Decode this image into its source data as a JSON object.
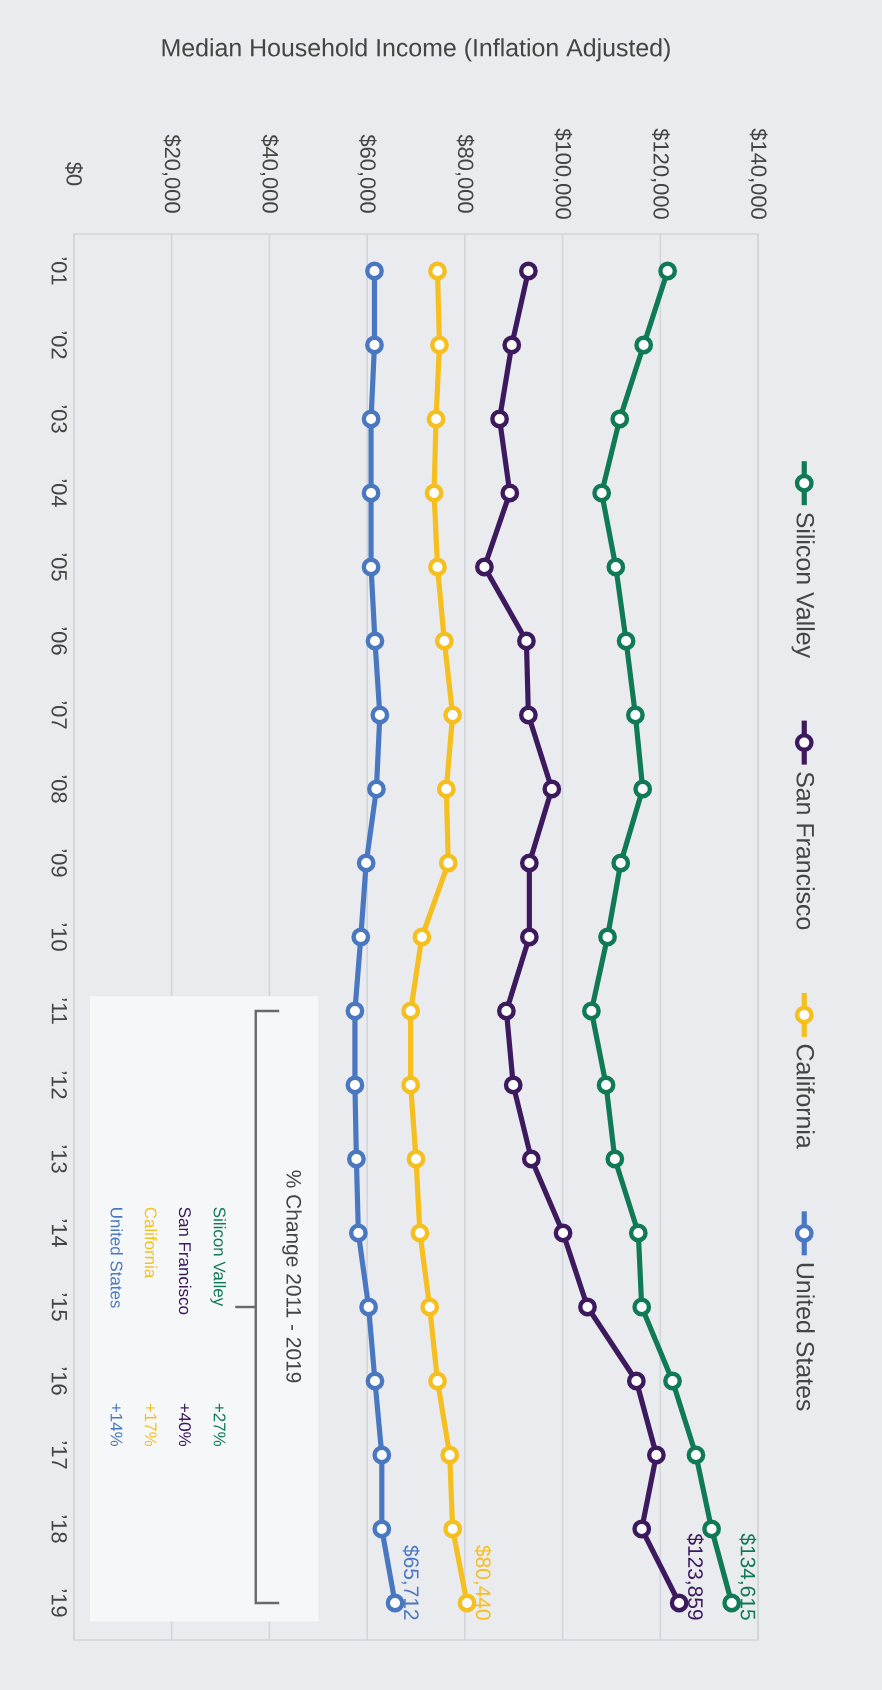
{
  "chart_data": {
    "type": "line",
    "orientation": "horizontal",
    "xlabel": "Median Household Income (Inflation Adjusted)",
    "categories": [
      "’01",
      "’02",
      "’03",
      "’04",
      "’05",
      "’06",
      "’07",
      "’08",
      "’09",
      "’10",
      "’11",
      "’12",
      "’13",
      "’14",
      "’15",
      "’16",
      "’17",
      "’18",
      "’19"
    ],
    "series": [
      {
        "name": "Silicon Valley",
        "color": "#0f7a55",
        "values": [
          121500,
          116600,
          111700,
          108000,
          110900,
          113000,
          114900,
          116400,
          111900,
          109200,
          105900,
          108900,
          110700,
          115500,
          116200,
          122500,
          127300,
          130500,
          134615
        ],
        "value_labels": [
          null,
          null,
          null,
          null,
          null,
          null,
          null,
          null,
          null,
          null,
          null,
          null,
          null,
          null,
          null,
          null,
          null,
          null,
          "$134,615"
        ]
      },
      {
        "name": "San Francisco",
        "color": "#3d1a5e",
        "values": [
          93000,
          89600,
          87100,
          89200,
          84000,
          92600,
          93000,
          97800,
          93200,
          93200,
          88500,
          89900,
          93600,
          100100,
          105100,
          115100,
          119200,
          116200,
          123859
        ],
        "value_labels": [
          null,
          null,
          null,
          null,
          null,
          null,
          null,
          null,
          null,
          null,
          null,
          null,
          null,
          null,
          null,
          null,
          null,
          null,
          "$123,859"
        ]
      },
      {
        "name": "California",
        "color": "#f5bf1f",
        "values": [
          74400,
          74800,
          74100,
          73700,
          74400,
          75800,
          77500,
          76200,
          76600,
          71200,
          68900,
          68900,
          70000,
          70800,
          72800,
          74400,
          76900,
          77500,
          80440
        ],
        "value_labels": [
          null,
          null,
          null,
          null,
          null,
          null,
          null,
          null,
          null,
          null,
          null,
          null,
          null,
          null,
          null,
          null,
          null,
          null,
          "$80,440"
        ]
      },
      {
        "name": "United States",
        "color": "#4a78c0",
        "values": [
          61500,
          61500,
          60800,
          60800,
          60800,
          61600,
          62600,
          61900,
          59800,
          58700,
          57500,
          57500,
          57800,
          58200,
          60300,
          61600,
          63000,
          63000,
          65712
        ],
        "value_labels": [
          null,
          null,
          null,
          null,
          null,
          null,
          null,
          null,
          null,
          null,
          null,
          null,
          null,
          null,
          null,
          null,
          null,
          null,
          "$65,712"
        ]
      }
    ],
    "xlim": [
      0,
      140000
    ],
    "xticks": [
      {
        "value": 0,
        "label": "$0"
      },
      {
        "value": 20000,
        "label": "$20,000"
      },
      {
        "value": 40000,
        "label": "$40,000"
      },
      {
        "value": 60000,
        "label": "$60,000"
      },
      {
        "value": 80000,
        "label": "$80,000"
      },
      {
        "value": 100000,
        "label": "$100,000"
      },
      {
        "value": 120000,
        "label": "$120,000"
      },
      {
        "value": 140000,
        "label": "$140,000"
      }
    ],
    "grid": "x",
    "legend": "right",
    "marker": "circle",
    "line_style": "solid",
    "annotations": [
      "% Change 2011 - 2019",
      "Silicon Valley",
      "+27%",
      "San Francisco",
      "+40%",
      "California",
      "+17%",
      "United States",
      "+14%"
    ]
  }
}
